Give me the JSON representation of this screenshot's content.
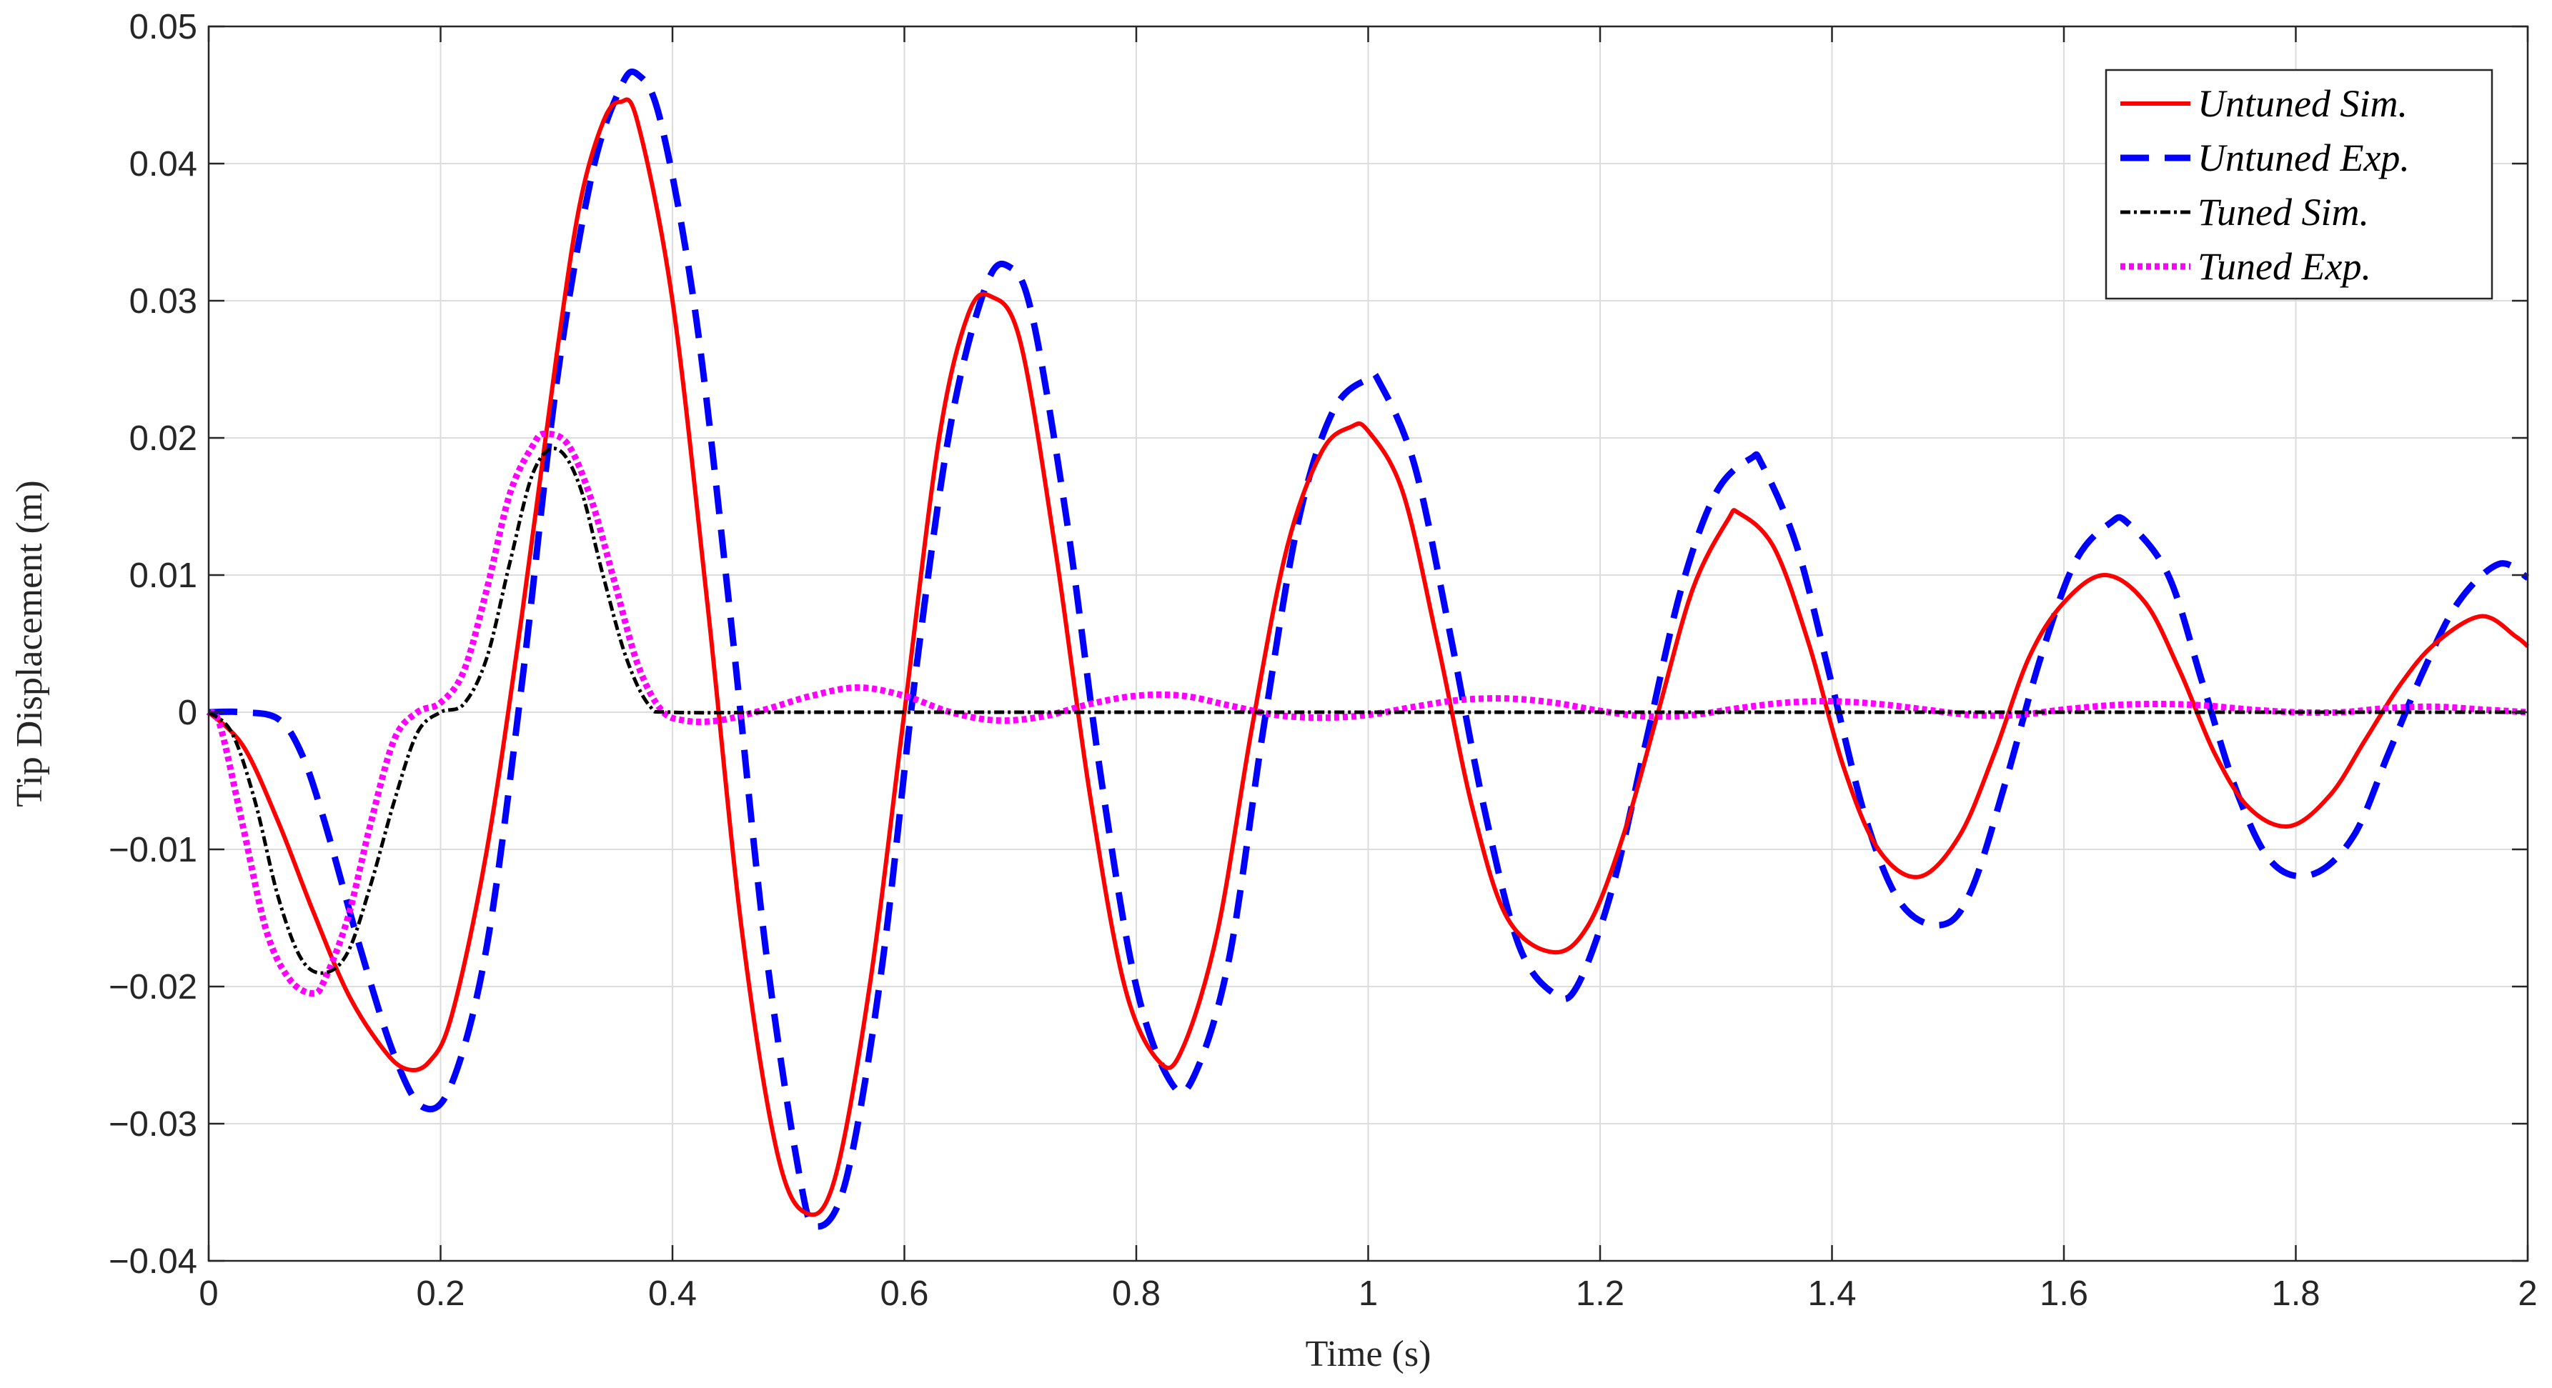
{
  "chart_data": {
    "type": "line",
    "xlabel": "Time (s)",
    "ylabel": "Tip Displacement (m)",
    "xlim": [
      0,
      2
    ],
    "ylim": [
      -0.04,
      0.05
    ],
    "grid": true,
    "legend_position": "top-right",
    "x_ticks": [
      0,
      0.2,
      0.4,
      0.6,
      0.8,
      1,
      1.2,
      1.4,
      1.6,
      1.8,
      2
    ],
    "x_tick_labels": [
      "0",
      "0.2",
      "0.4",
      "0.6",
      "0.8",
      "1",
      "1.2",
      "1.4",
      "1.6",
      "1.8",
      "2"
    ],
    "y_ticks": [
      -0.04,
      -0.03,
      -0.02,
      -0.01,
      0,
      0.01,
      0.02,
      0.03,
      0.04,
      0.05
    ],
    "y_tick_labels": [
      "−0.04",
      "−0.03",
      "−0.02",
      "−0.01",
      "0",
      "0.01",
      "0.02",
      "0.03",
      "0.04",
      "0.05"
    ],
    "series": [
      {
        "name": "Untuned Sim.",
        "color": "#ff0000",
        "style": "solid",
        "x": [
          0,
          0.03,
          0.06,
          0.09,
          0.12,
          0.15,
          0.17,
          0.19,
          0.21,
          0.24,
          0.27,
          0.3,
          0.32,
          0.34,
          0.355,
          0.37,
          0.4,
          0.43,
          0.46,
          0.49,
          0.515,
          0.54,
          0.57,
          0.6,
          0.63,
          0.655,
          0.675,
          0.7,
          0.73,
          0.76,
          0.79,
          0.82,
          0.84,
          0.87,
          0.9,
          0.93,
          0.96,
          0.985,
          1.0,
          1.03,
          1.06,
          1.09,
          1.12,
          1.16,
          1.19,
          1.22,
          1.25,
          1.28,
          1.31,
          1.32,
          1.35,
          1.38,
          1.41,
          1.44,
          1.475,
          1.51,
          1.54,
          1.57,
          1.6,
          1.635,
          1.67,
          1.7,
          1.73,
          1.76,
          1.795,
          1.83,
          1.86,
          1.89,
          1.92,
          1.96,
          1.99,
          2.0
        ],
        "y": [
          0,
          -0.0025,
          -0.008,
          -0.0145,
          -0.0205,
          -0.0245,
          -0.026,
          -0.0255,
          -0.022,
          -0.01,
          0.007,
          0.026,
          0.037,
          0.043,
          0.0445,
          0.043,
          0.03,
          0.008,
          -0.016,
          -0.032,
          -0.0365,
          -0.034,
          -0.02,
          0.0,
          0.02,
          0.029,
          0.0303,
          0.027,
          0.012,
          -0.006,
          -0.02,
          -0.0255,
          -0.0245,
          -0.016,
          -0.001,
          0.012,
          0.019,
          0.0208,
          0.0205,
          0.016,
          0.005,
          -0.007,
          -0.015,
          -0.0175,
          -0.0155,
          -0.009,
          0.0,
          0.009,
          0.014,
          0.0145,
          0.012,
          0.005,
          -0.004,
          -0.01,
          -0.012,
          -0.009,
          -0.003,
          0.004,
          0.008,
          0.01,
          0.008,
          0.003,
          -0.003,
          -0.007,
          -0.0083,
          -0.006,
          -0.002,
          0.002,
          0.005,
          0.007,
          0.0055,
          0.0048
        ]
      },
      {
        "name": "Untuned Exp.",
        "color": "#0000ff",
        "style": "dashed",
        "x": [
          0,
          0.03,
          0.06,
          0.08,
          0.1,
          0.13,
          0.16,
          0.185,
          0.21,
          0.24,
          0.27,
          0.3,
          0.33,
          0.355,
          0.37,
          0.39,
          0.42,
          0.45,
          0.48,
          0.51,
          0.525,
          0.55,
          0.58,
          0.61,
          0.64,
          0.67,
          0.69,
          0.71,
          0.74,
          0.77,
          0.8,
          0.83,
          0.85,
          0.88,
          0.91,
          0.94,
          0.97,
          1.0,
          1.01,
          1.04,
          1.07,
          1.1,
          1.13,
          1.16,
          1.18,
          1.21,
          1.24,
          1.27,
          1.3,
          1.33,
          1.34,
          1.37,
          1.4,
          1.43,
          1.46,
          1.495,
          1.52,
          1.55,
          1.58,
          1.61,
          1.64,
          1.655,
          1.69,
          1.72,
          1.75,
          1.78,
          1.815,
          1.85,
          1.88,
          1.91,
          1.94,
          1.975,
          2.0
        ],
        "y": [
          0,
          0,
          -0.0005,
          -0.003,
          -0.008,
          -0.017,
          -0.025,
          -0.0288,
          -0.027,
          -0.017,
          0.002,
          0.024,
          0.039,
          0.0455,
          0.0465,
          0.043,
          0.029,
          0.007,
          -0.017,
          -0.034,
          -0.0375,
          -0.034,
          -0.019,
          0.003,
          0.021,
          0.031,
          0.0325,
          0.029,
          0.014,
          -0.005,
          -0.02,
          -0.027,
          -0.0265,
          -0.018,
          -0.001,
          0.014,
          0.022,
          0.0243,
          0.024,
          0.018,
          0.006,
          -0.007,
          -0.017,
          -0.0205,
          -0.02,
          -0.013,
          -0.002,
          0.009,
          0.016,
          0.0185,
          0.018,
          0.012,
          0.002,
          -0.008,
          -0.014,
          -0.0155,
          -0.013,
          -0.005,
          0.004,
          0.011,
          0.0138,
          0.0138,
          0.01,
          0.002,
          -0.006,
          -0.011,
          -0.0118,
          -0.009,
          -0.003,
          0.003,
          0.008,
          0.0108,
          0.0098
        ]
      },
      {
        "name": "Tuned Sim.",
        "color": "#000000",
        "style": "dashdot",
        "x": [
          0,
          0.02,
          0.04,
          0.06,
          0.08,
          0.1,
          0.12,
          0.14,
          0.16,
          0.18,
          0.2,
          0.22,
          0.24,
          0.26,
          0.28,
          0.3,
          0.32,
          0.34,
          0.36,
          0.38,
          0.4,
          0.5,
          0.6,
          0.8,
          1.0,
          1.2,
          1.4,
          1.6,
          1.8,
          2.0
        ],
        "y": [
          0,
          -0.0015,
          -0.0065,
          -0.0135,
          -0.018,
          -0.019,
          -0.0175,
          -0.0125,
          -0.0065,
          -0.0015,
          0.0,
          0.0006,
          0.004,
          0.011,
          0.0175,
          0.0192,
          0.0165,
          0.01,
          0.004,
          0.0005,
          0.0,
          0.0,
          0.0,
          0.0,
          0.0,
          0.0,
          0.0,
          0.0,
          0.0,
          0.0
        ]
      },
      {
        "name": "Tuned Exp.",
        "color": "#ff00ff",
        "style": "dotted",
        "x": [
          0,
          0.01,
          0.03,
          0.05,
          0.07,
          0.09,
          0.1,
          0.12,
          0.14,
          0.16,
          0.18,
          0.2,
          0.22,
          0.24,
          0.26,
          0.28,
          0.29,
          0.31,
          0.33,
          0.35,
          0.37,
          0.39,
          0.41,
          0.44,
          0.48,
          0.52,
          0.56,
          0.6,
          0.64,
          0.68,
          0.72,
          0.76,
          0.8,
          0.84,
          0.88,
          0.92,
          0.96,
          1.0,
          1.04,
          1.08,
          1.12,
          1.16,
          1.2,
          1.24,
          1.28,
          1.32,
          1.36,
          1.4,
          1.44,
          1.48,
          1.52,
          1.56,
          1.6,
          1.64,
          1.68,
          1.72,
          1.76,
          1.8,
          1.84,
          1.88,
          1.92,
          1.96,
          2.0
        ],
        "y": [
          0,
          -0.001,
          -0.0085,
          -0.016,
          -0.0195,
          -0.0205,
          -0.0195,
          -0.015,
          -0.008,
          -0.002,
          0.0,
          0.0007,
          0.003,
          0.009,
          0.016,
          0.0195,
          0.0203,
          0.0195,
          0.0155,
          0.0095,
          0.0035,
          0.0002,
          -0.0006,
          -0.0006,
          0.0002,
          0.0012,
          0.0018,
          0.0012,
          0.0,
          -0.0006,
          -0.0003,
          0.0006,
          0.0012,
          0.0012,
          0.0005,
          -0.0002,
          -0.0004,
          -0.0002,
          0.0004,
          0.0009,
          0.001,
          0.0007,
          0.0001,
          -0.0003,
          -0.0002,
          0.0003,
          0.0007,
          0.0008,
          0.0006,
          0.0002,
          -0.0002,
          -0.0002,
          0.0002,
          0.0005,
          0.0006,
          0.0005,
          0.0002,
          0.0,
          0.0,
          0.0003,
          0.0004,
          0.0002,
          0.0
        ]
      }
    ]
  }
}
